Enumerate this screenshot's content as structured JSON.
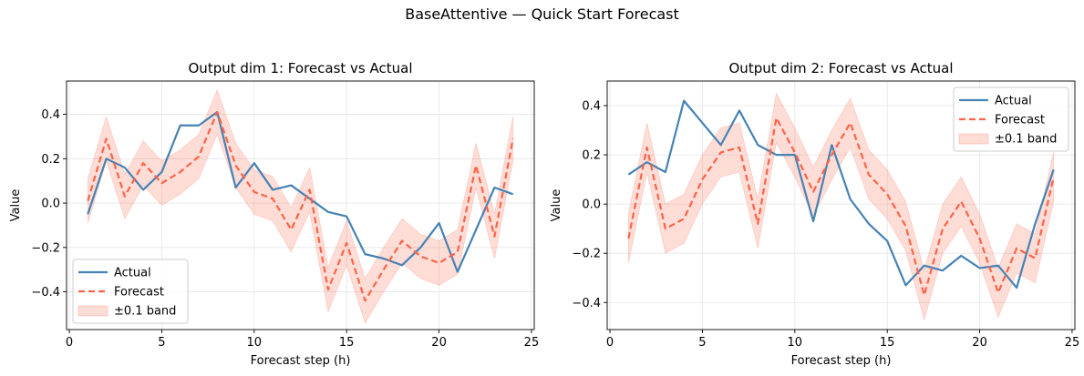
{
  "figure": {
    "suptitle": "BaseAttentive — Quick Start Forecast"
  },
  "colors": {
    "actual": "#4682b4",
    "forecast": "#ff6347",
    "band": "#ff6347",
    "grid": "#e6e6e6"
  },
  "chart_data": [
    {
      "type": "line",
      "title": "Output dim 1: Forecast vs Actual",
      "xlabel": "Forecast step (h)",
      "ylabel": "Value",
      "xlim": [
        -0.15,
        25.15
      ],
      "ylim": [
        -0.57,
        0.55
      ],
      "xticks": [
        0,
        5,
        10,
        15,
        20,
        25
      ],
      "yticks": [
        -0.4,
        -0.2,
        0.0,
        0.2,
        0.4
      ],
      "grid": true,
      "legend_position": "lower left",
      "x": [
        1,
        2,
        3,
        4,
        5,
        6,
        7,
        8,
        9,
        10,
        11,
        12,
        13,
        14,
        15,
        16,
        17,
        18,
        19,
        20,
        21,
        22,
        23,
        24
      ],
      "series": [
        {
          "name": "Actual",
          "style": "solid",
          "values": [
            -0.05,
            0.2,
            0.16,
            0.06,
            0.14,
            0.35,
            0.35,
            0.41,
            0.07,
            0.18,
            0.06,
            0.08,
            0.02,
            -0.04,
            -0.06,
            -0.23,
            -0.25,
            -0.28,
            -0.2,
            -0.09,
            -0.31,
            -0.12,
            0.07,
            0.04
          ]
        },
        {
          "name": "Forecast",
          "style": "dashed",
          "band": 0.1,
          "values": [
            0.01,
            0.29,
            0.03,
            0.18,
            0.09,
            0.14,
            0.21,
            0.41,
            0.17,
            0.05,
            0.02,
            -0.12,
            0.06,
            -0.39,
            -0.18,
            -0.44,
            -0.3,
            -0.17,
            -0.24,
            -0.27,
            -0.22,
            0.17,
            -0.15,
            0.29
          ]
        }
      ],
      "band_label": "±0.1 band"
    },
    {
      "type": "line",
      "title": "Output dim 2: Forecast vs Actual",
      "xlabel": "Forecast step (h)",
      "ylabel": "Value",
      "xlim": [
        -0.15,
        25.15
      ],
      "ylim": [
        -0.51,
        0.5
      ],
      "xticks": [
        0,
        5,
        10,
        15,
        20,
        25
      ],
      "yticks": [
        -0.4,
        -0.2,
        0.0,
        0.2,
        0.4
      ],
      "grid": true,
      "legend_position": "upper right",
      "x": [
        1,
        2,
        3,
        4,
        5,
        6,
        7,
        8,
        9,
        10,
        11,
        12,
        13,
        14,
        15,
        16,
        17,
        18,
        19,
        20,
        21,
        22,
        23,
        24
      ],
      "series": [
        {
          "name": "Actual",
          "style": "solid",
          "values": [
            0.12,
            0.17,
            0.13,
            0.42,
            0.33,
            0.24,
            0.38,
            0.24,
            0.2,
            0.2,
            -0.07,
            0.24,
            0.02,
            -0.08,
            -0.15,
            -0.33,
            -0.25,
            -0.27,
            -0.21,
            -0.26,
            -0.25,
            -0.34,
            -0.08,
            0.14
          ]
        },
        {
          "name": "Forecast",
          "style": "dashed",
          "band": 0.1,
          "values": [
            -0.14,
            0.23,
            -0.1,
            -0.06,
            0.1,
            0.21,
            0.23,
            -0.08,
            0.35,
            0.21,
            0.05,
            0.2,
            0.33,
            0.12,
            0.04,
            -0.09,
            -0.37,
            -0.1,
            0.01,
            -0.14,
            -0.36,
            -0.18,
            -0.22,
            0.11
          ]
        }
      ],
      "band_label": "±0.1 band"
    }
  ]
}
